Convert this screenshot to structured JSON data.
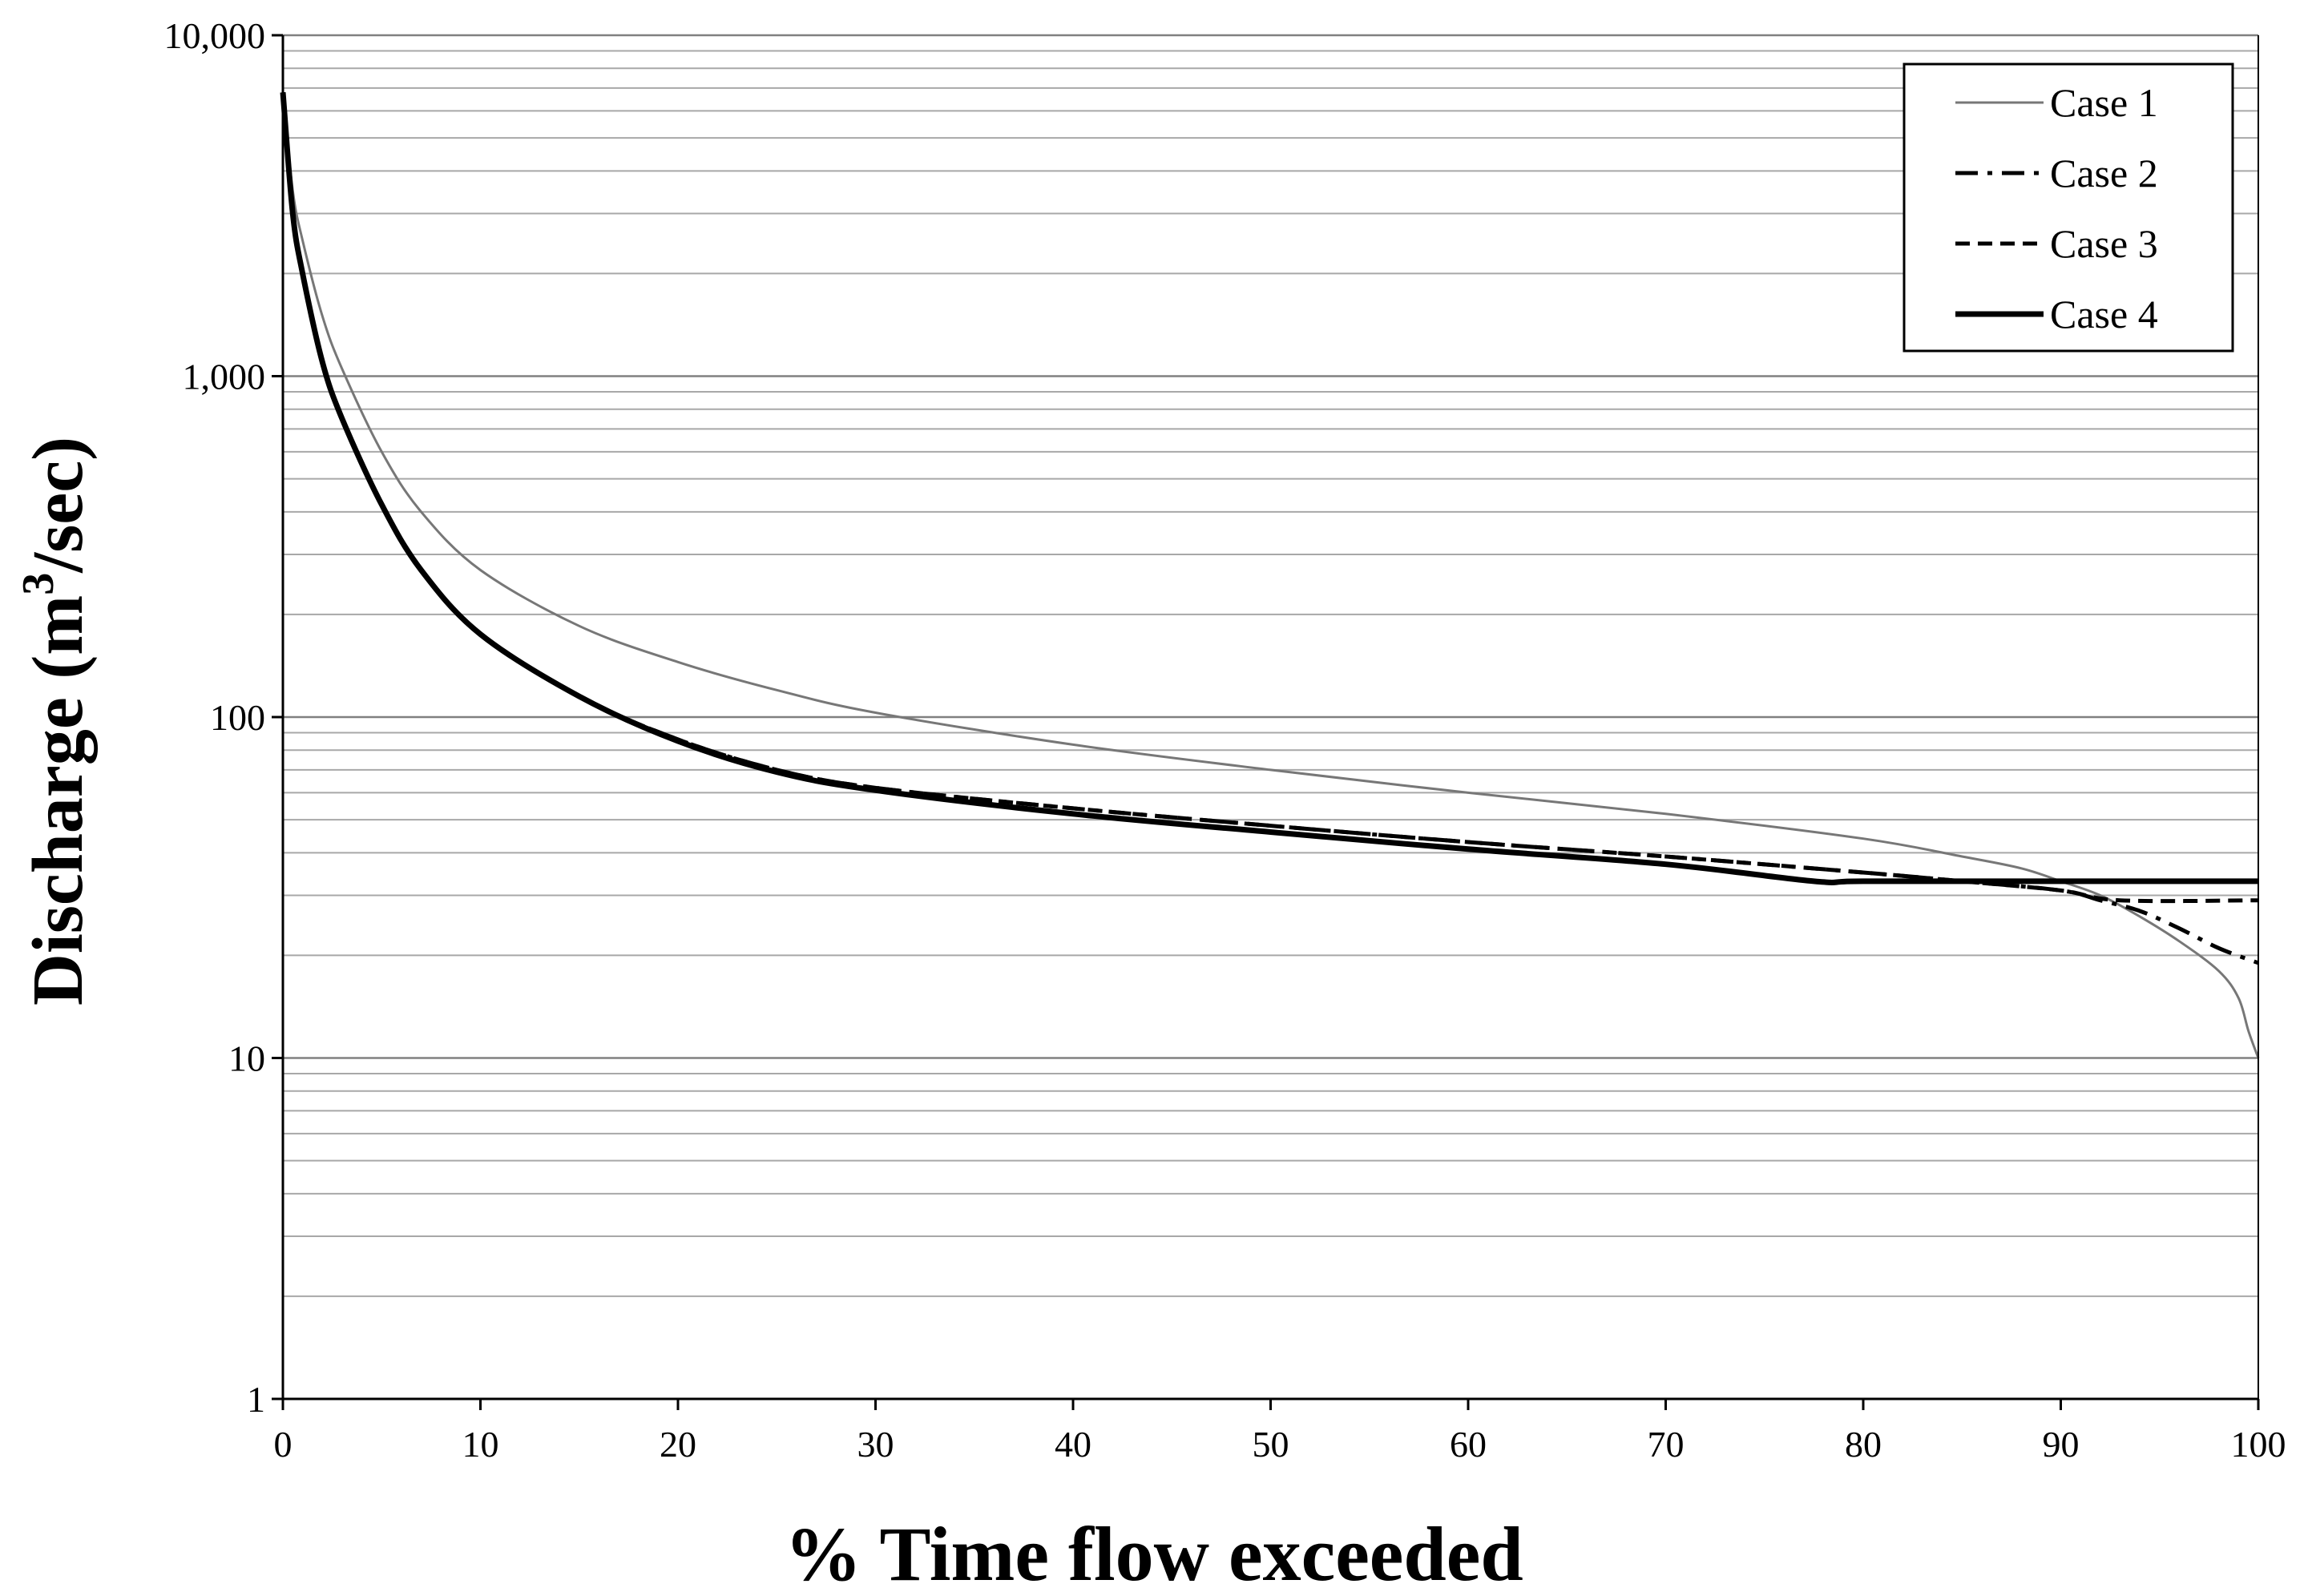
{
  "chart_data": {
    "type": "line",
    "xlabel": "% Time flow exceeded",
    "ylabel_main": "Discharge (m",
    "ylabel_sup": "3",
    "ylabel_end": "/sec)",
    "xlim": [
      0,
      100
    ],
    "ylim": [
      1,
      10000
    ],
    "yscale": "log",
    "grid": "horizontal-minor-and-major",
    "legend_position": "top-right",
    "x_ticks": [
      0,
      10,
      20,
      30,
      40,
      50,
      60,
      70,
      80,
      90,
      100
    ],
    "x_tick_labels": [
      "0",
      "10",
      "20",
      "30",
      "40",
      "50",
      "60",
      "70",
      "80",
      "90",
      "100"
    ],
    "y_ticks": [
      1,
      10,
      100,
      1000,
      10000
    ],
    "y_tick_labels": [
      "1",
      "10",
      "100",
      "1,000",
      "10,000"
    ],
    "series": [
      {
        "name": "Case 1",
        "style": "thin-solid",
        "color": "#777777",
        "x": [
          0,
          0.5,
          1,
          2,
          3,
          5,
          7,
          10,
          15,
          20,
          25,
          30,
          40,
          50,
          60,
          70,
          80,
          85,
          88,
          90,
          92,
          94,
          96,
          98,
          99,
          99.5,
          100
        ],
        "y": [
          6800,
          3500,
          2500,
          1500,
          1050,
          600,
          400,
          270,
          185,
          145,
          120,
          103,
          83,
          70,
          60,
          52,
          44,
          39,
          36,
          33,
          30,
          26,
          22,
          18,
          15,
          12,
          10
        ]
      },
      {
        "name": "Case 2",
        "style": "dash-dot",
        "color": "#000000",
        "x": [
          0,
          0.5,
          1,
          2,
          3,
          5,
          7,
          10,
          15,
          20,
          25,
          30,
          40,
          50,
          60,
          70,
          80,
          85,
          90,
          92,
          94,
          96,
          98,
          100
        ],
        "y": [
          6800,
          3000,
          2000,
          1100,
          750,
          420,
          270,
          175,
          115,
          86,
          70,
          62,
          54,
          48,
          43,
          39,
          35,
          33,
          31,
          29,
          27,
          24,
          21,
          19
        ]
      },
      {
        "name": "Case 3",
        "style": "dashed",
        "color": "#000000",
        "x": [
          0,
          0.5,
          1,
          2,
          3,
          5,
          7,
          10,
          15,
          20,
          25,
          30,
          40,
          50,
          60,
          70,
          80,
          85,
          90,
          93,
          100
        ],
        "y": [
          6800,
          3000,
          2000,
          1100,
          750,
          420,
          270,
          175,
          115,
          86,
          70,
          62,
          54,
          48,
          43,
          39,
          35,
          33,
          31,
          29,
          29
        ]
      },
      {
        "name": "Case 4",
        "style": "thick-solid",
        "color": "#000000",
        "x": [
          0,
          0.5,
          1,
          2,
          3,
          5,
          7,
          10,
          15,
          20,
          25,
          30,
          40,
          50,
          60,
          70,
          77.5,
          80,
          90,
          100
        ],
        "y": [
          6800,
          3000,
          2000,
          1100,
          750,
          420,
          270,
          175,
          115,
          85,
          69,
          61,
          52,
          46,
          41,
          37,
          33,
          33,
          33,
          33
        ]
      }
    ]
  }
}
